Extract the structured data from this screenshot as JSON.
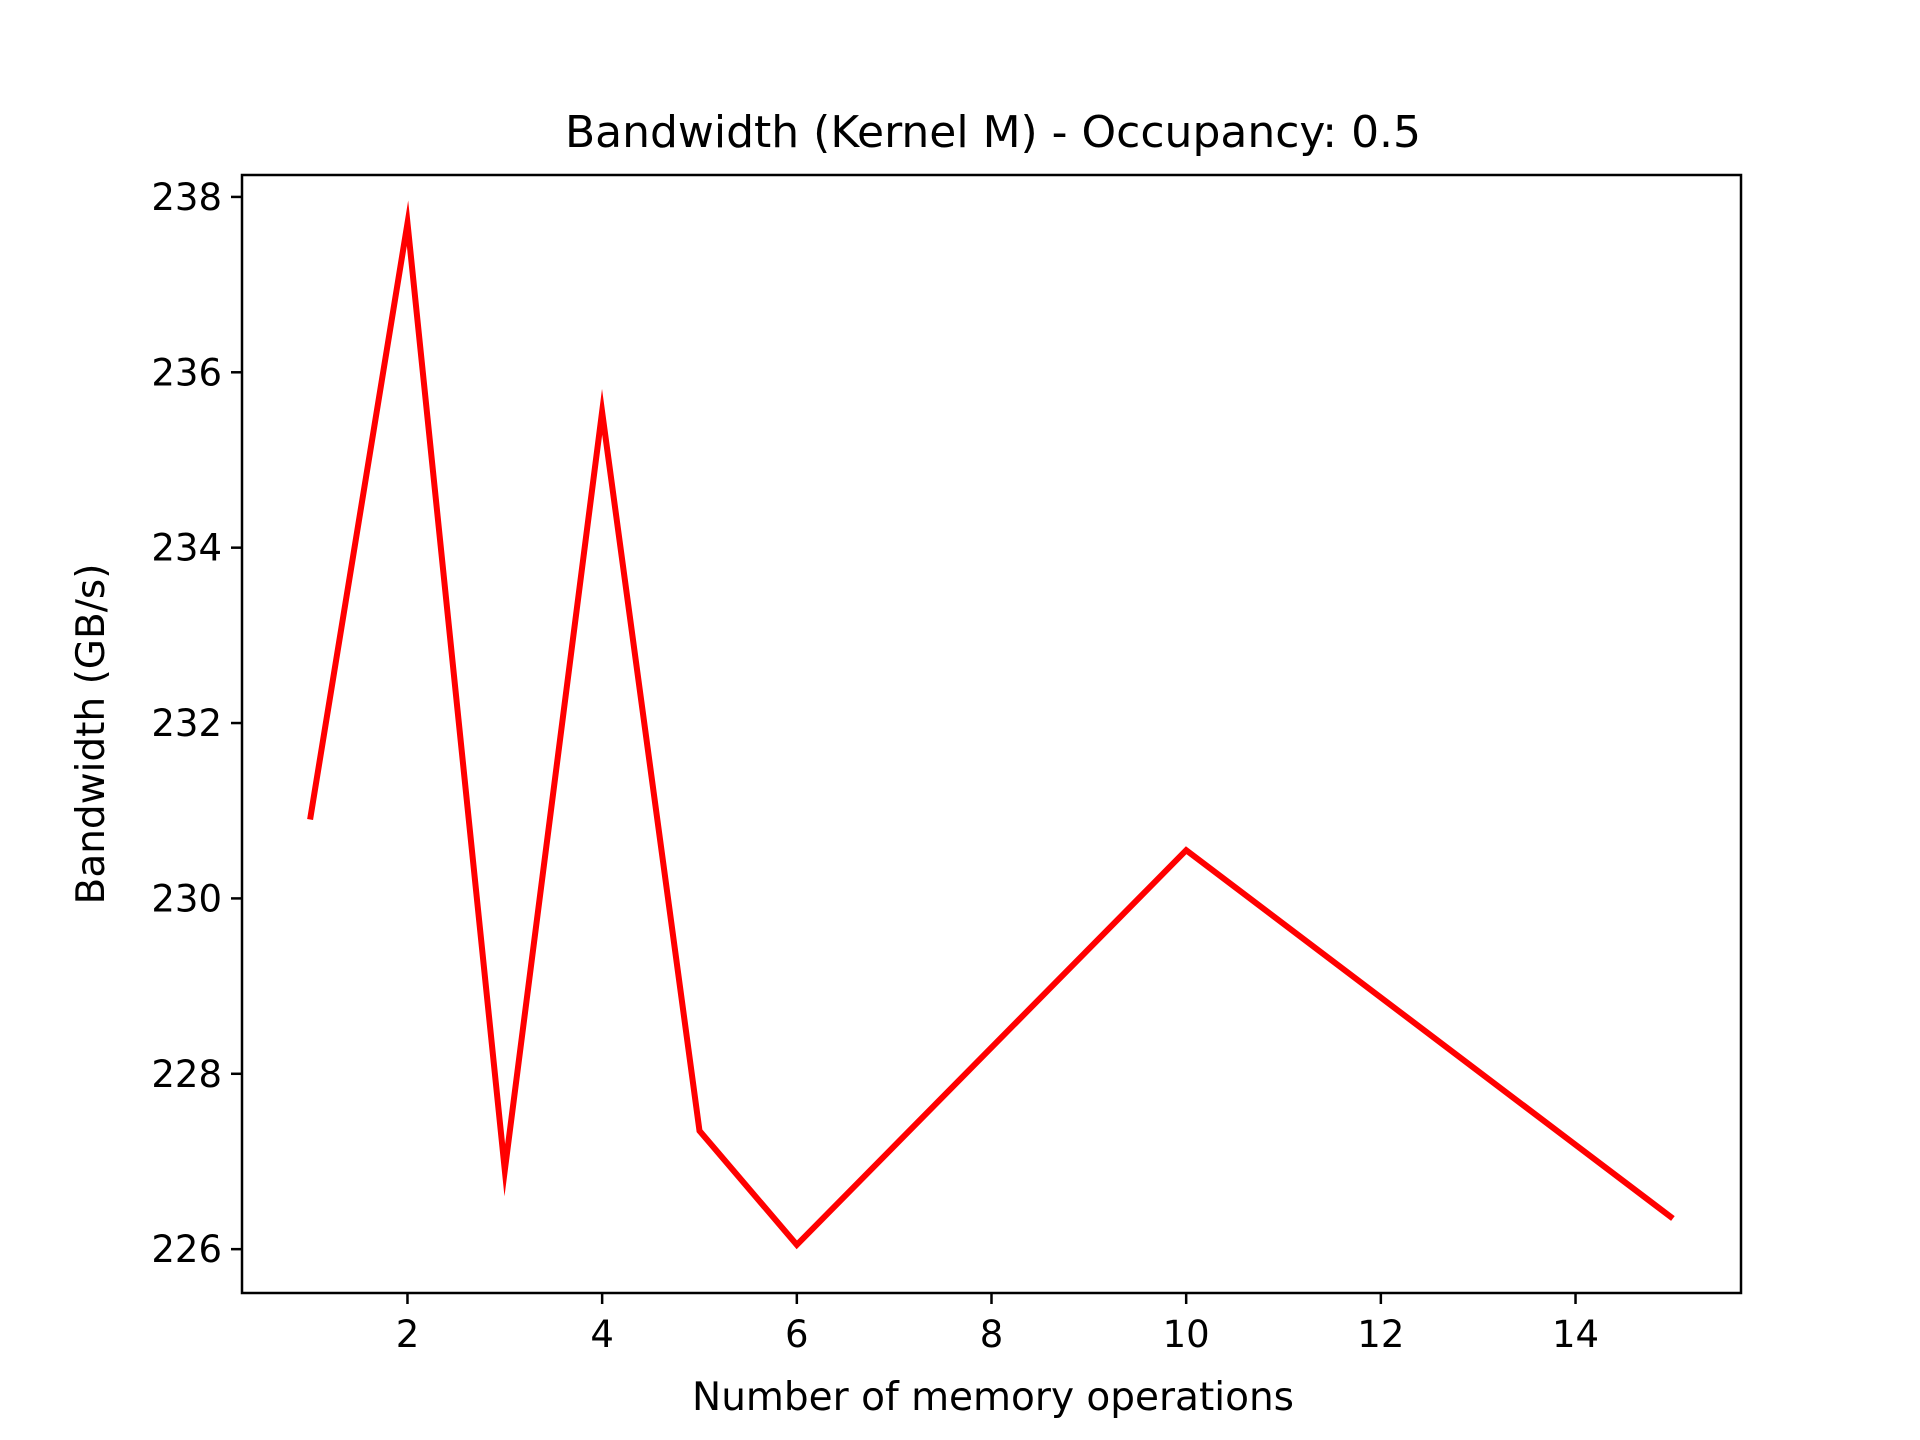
{
  "chart_data": {
    "type": "line",
    "title": "Bandwidth (Kernel M) - Occupancy: 0.5",
    "xlabel": "Number of memory operations",
    "ylabel": "Bandwidth (GB/s)",
    "xlim": [
      0.3,
      15.7
    ],
    "ylim": [
      225.5,
      238.25
    ],
    "x_ticks": [
      2,
      4,
      6,
      8,
      10,
      12,
      14
    ],
    "y_ticks": [
      226,
      228,
      230,
      232,
      234,
      236,
      238
    ],
    "grid": false,
    "legend": "none",
    "series": [
      {
        "color": "#ff0000",
        "x": [
          1,
          2,
          3,
          4,
          5,
          6,
          10,
          15
        ],
        "y": [
          230.9,
          237.7,
          226.9,
          235.55,
          227.35,
          226.05,
          230.55,
          226.35
        ]
      }
    ]
  }
}
